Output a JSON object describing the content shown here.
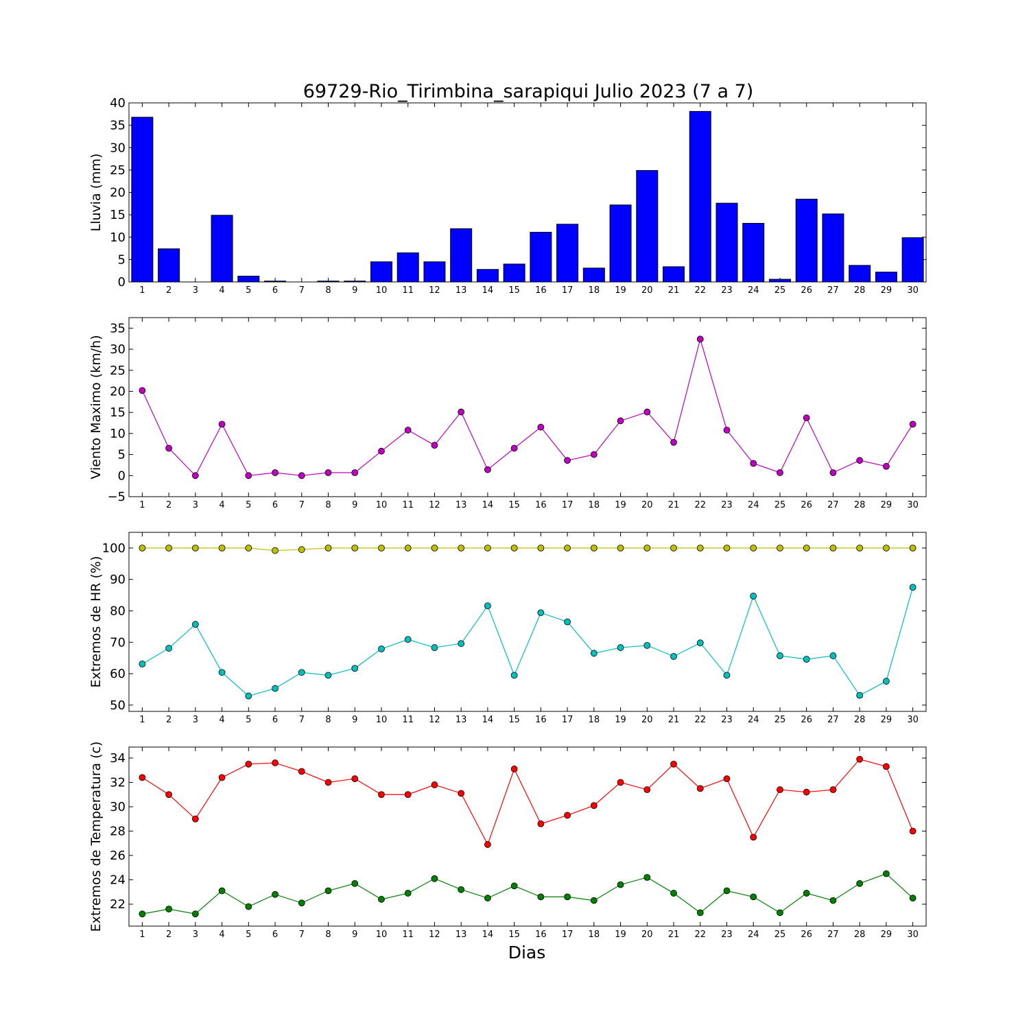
{
  "chart_data": [
    {
      "type": "bar",
      "title": "69729-Rio_Tirimbina_sarapiqui Julio 2023  (7 a 7)",
      "ylabel": "Lluvia (mm)",
      "xlabel": "",
      "ylim": [
        0,
        40
      ],
      "yticks": [
        0,
        5,
        10,
        15,
        20,
        25,
        30,
        35,
        40
      ],
      "categories": [
        "1",
        "2",
        "3",
        "4",
        "5",
        "6",
        "7",
        "8",
        "9",
        "10",
        "11",
        "12",
        "13",
        "14",
        "15",
        "16",
        "17",
        "18",
        "19",
        "20",
        "21",
        "22",
        "23",
        "24",
        "25",
        "26",
        "27",
        "28",
        "29",
        "30"
      ],
      "series": [
        {
          "color": "#0000ff",
          "values": [
            36.8,
            7.4,
            0,
            14.9,
            1.3,
            0.2,
            0,
            0.2,
            0.2,
            4.5,
            6.5,
            4.5,
            11.9,
            2.8,
            4.0,
            11.1,
            12.9,
            3.1,
            17.2,
            24.9,
            3.4,
            38.1,
            17.6,
            13.1,
            0.6,
            18.5,
            15.2,
            3.7,
            2.2,
            9.9
          ]
        }
      ],
      "grid": false
    },
    {
      "type": "line",
      "title": "",
      "ylabel": "Viento Maximo (km/h)",
      "xlabel": "",
      "ylim": [
        -5,
        37.5
      ],
      "yticks": [
        -5,
        0,
        5,
        10,
        15,
        20,
        25,
        30,
        35
      ],
      "categories": [
        "1",
        "2",
        "3",
        "4",
        "5",
        "6",
        "7",
        "8",
        "9",
        "10",
        "11",
        "12",
        "13",
        "14",
        "15",
        "16",
        "17",
        "18",
        "19",
        "20",
        "21",
        "22",
        "23",
        "24",
        "25",
        "26",
        "27",
        "28",
        "29",
        "30"
      ],
      "series": [
        {
          "color": "#bf00bf",
          "values": [
            20.2,
            6.5,
            0,
            12.2,
            0,
            0.7,
            0,
            0.7,
            0.7,
            5.8,
            10.8,
            7.2,
            15.1,
            1.4,
            6.5,
            11.5,
            3.6,
            5.0,
            13.0,
            15.1,
            7.9,
            32.4,
            10.8,
            2.9,
            0.7,
            13.7,
            0.7,
            3.6,
            2.2,
            12.2
          ]
        }
      ],
      "grid": false
    },
    {
      "type": "line",
      "title": "",
      "ylabel": "Extremos de HR (%)",
      "xlabel": "",
      "ylim": [
        48,
        105
      ],
      "yticks": [
        50,
        60,
        70,
        80,
        90,
        100
      ],
      "categories": [
        "1",
        "2",
        "3",
        "4",
        "5",
        "6",
        "7",
        "8",
        "9",
        "10",
        "11",
        "12",
        "13",
        "14",
        "15",
        "16",
        "17",
        "18",
        "19",
        "20",
        "21",
        "22",
        "23",
        "24",
        "25",
        "26",
        "27",
        "28",
        "29",
        "30"
      ],
      "series": [
        {
          "color": "#bfbf00",
          "values": [
            100,
            100,
            100,
            100,
            100,
            99.2,
            99.5,
            100,
            100,
            100,
            100,
            100,
            100,
            100,
            100,
            100,
            100,
            100,
            100,
            100,
            100,
            100,
            100,
            100,
            100,
            100,
            100,
            100,
            100,
            100
          ]
        },
        {
          "color": "#00bfbf",
          "values": [
            63.1,
            68.1,
            75.7,
            60.4,
            52.9,
            55.3,
            60.4,
            59.5,
            61.7,
            67.9,
            70.9,
            68.3,
            69.6,
            81.6,
            59.5,
            79.4,
            76.5,
            66.5,
            68.3,
            69.0,
            65.5,
            69.8,
            59.5,
            84.7,
            65.7,
            64.6,
            65.7,
            53.1,
            57.6,
            87.5
          ]
        }
      ],
      "grid": false
    },
    {
      "type": "line",
      "title": "",
      "ylabel": "Extremos de Temperatura (c)",
      "xlabel": "Dias",
      "ylim": [
        20.2,
        34.9
      ],
      "yticks": [
        22,
        24,
        26,
        28,
        30,
        32,
        34
      ],
      "categories": [
        "1",
        "2",
        "3",
        "4",
        "5",
        "6",
        "7",
        "8",
        "9",
        "10",
        "11",
        "12",
        "13",
        "14",
        "15",
        "16",
        "17",
        "18",
        "19",
        "20",
        "21",
        "22",
        "23",
        "24",
        "25",
        "26",
        "27",
        "28",
        "29",
        "30"
      ],
      "series": [
        {
          "color": "#ff0000",
          "values": [
            32.4,
            31.0,
            29.0,
            32.4,
            33.5,
            33.6,
            32.9,
            32.0,
            32.3,
            31.0,
            31.0,
            31.8,
            31.1,
            26.9,
            33.1,
            28.6,
            29.3,
            30.1,
            32.0,
            31.4,
            33.5,
            31.5,
            32.3,
            27.5,
            31.4,
            31.2,
            31.4,
            33.9,
            33.3,
            28.0
          ]
        },
        {
          "color": "#008000",
          "values": [
            21.2,
            21.6,
            21.2,
            23.1,
            21.8,
            22.8,
            22.1,
            23.1,
            23.7,
            22.4,
            22.9,
            24.1,
            23.2,
            22.5,
            23.5,
            22.6,
            22.6,
            22.3,
            23.6,
            24.2,
            22.9,
            21.3,
            23.1,
            22.6,
            21.3,
            22.9,
            22.3,
            23.7,
            24.5,
            22.5
          ]
        }
      ],
      "grid": false
    }
  ]
}
